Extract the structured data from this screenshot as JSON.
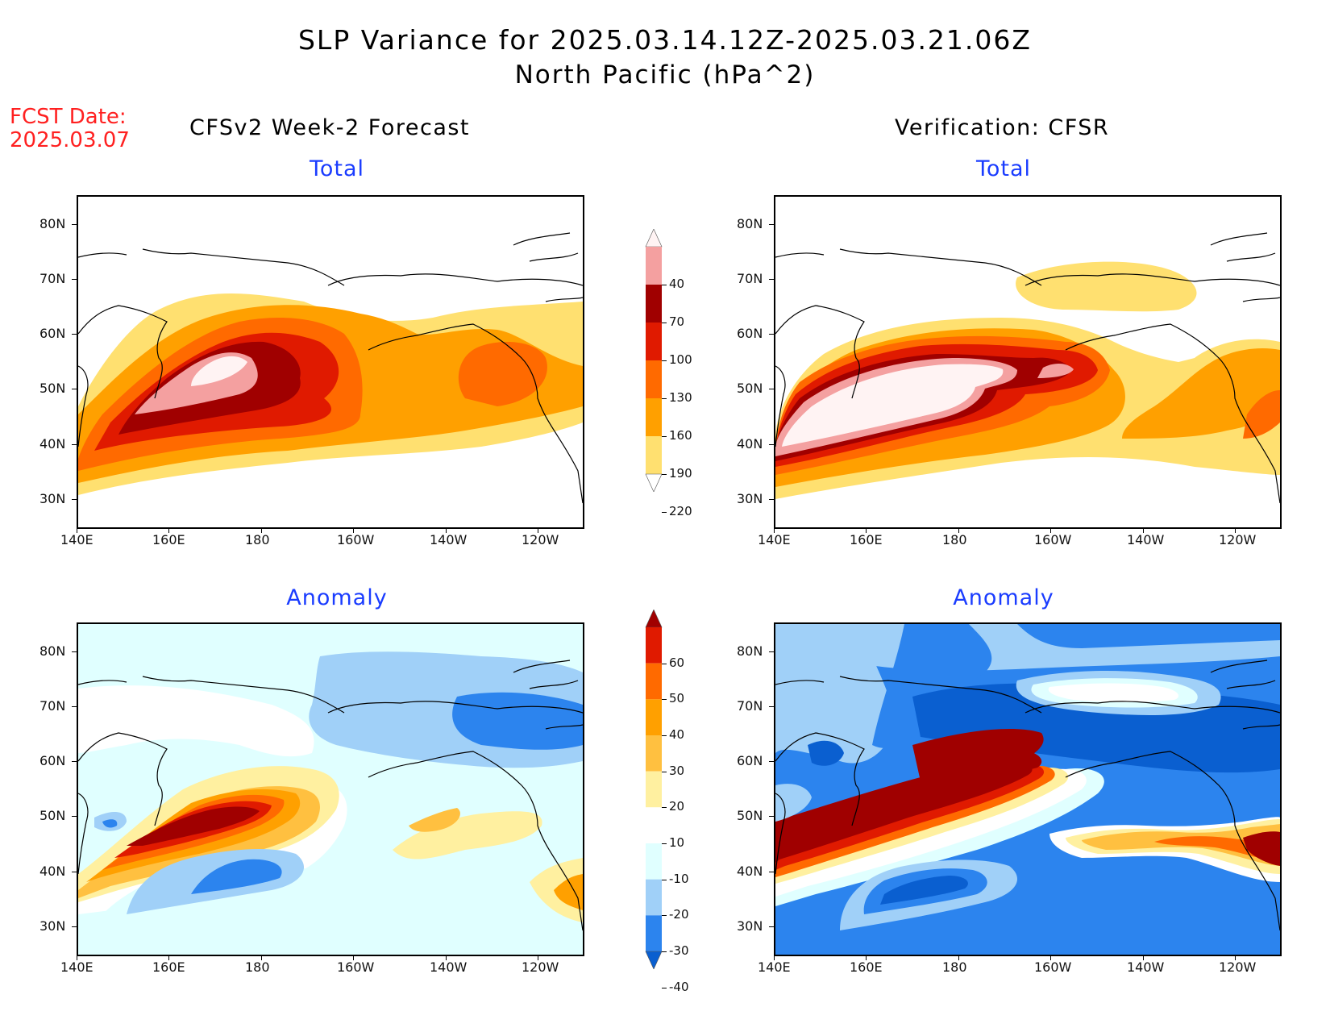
{
  "title_line1": "SLP Variance for 2025.03.14.12Z-2025.03.21.06Z",
  "title_line2": "North Pacific (hPa^2)",
  "fcst_label": "FCST Date:",
  "fcst_date": "2025.03.07",
  "left_heading": "CFSv2 Week-2 Forecast",
  "right_heading": "Verification: CFSR",
  "panel_titles": {
    "forecast_total": "Total",
    "verification_total": "Total",
    "forecast_anomaly": "Anomaly",
    "verification_anomaly": "Anomaly"
  },
  "axes": {
    "lat_ticks": [
      "80N",
      "70N",
      "60N",
      "50N",
      "40N",
      "30N"
    ],
    "lon_ticks": [
      "140E",
      "160E",
      "180",
      "160W",
      "140W",
      "120W"
    ]
  },
  "total_colorbar": {
    "levels": [
      "40",
      "70",
      "100",
      "130",
      "160",
      "190",
      "220"
    ],
    "colors": [
      "#fff3f3",
      "#f4a0a0",
      "#a00000",
      "#e01a00",
      "#ff6a00",
      "#ffa000",
      "#ffe070",
      "#ffffff"
    ]
  },
  "anomaly_colorbar": {
    "levels": [
      "60",
      "50",
      "40",
      "30",
      "20",
      "10",
      "-10",
      "-20",
      "-30",
      "-40"
    ],
    "colors": [
      "#a00000",
      "#e01a00",
      "#ff6a00",
      "#ffa000",
      "#ffc040",
      "#fff0a0",
      "#ffffff",
      "#e0ffff",
      "#a0d0f8",
      "#2c84ee",
      "#0a5fd0"
    ]
  }
}
